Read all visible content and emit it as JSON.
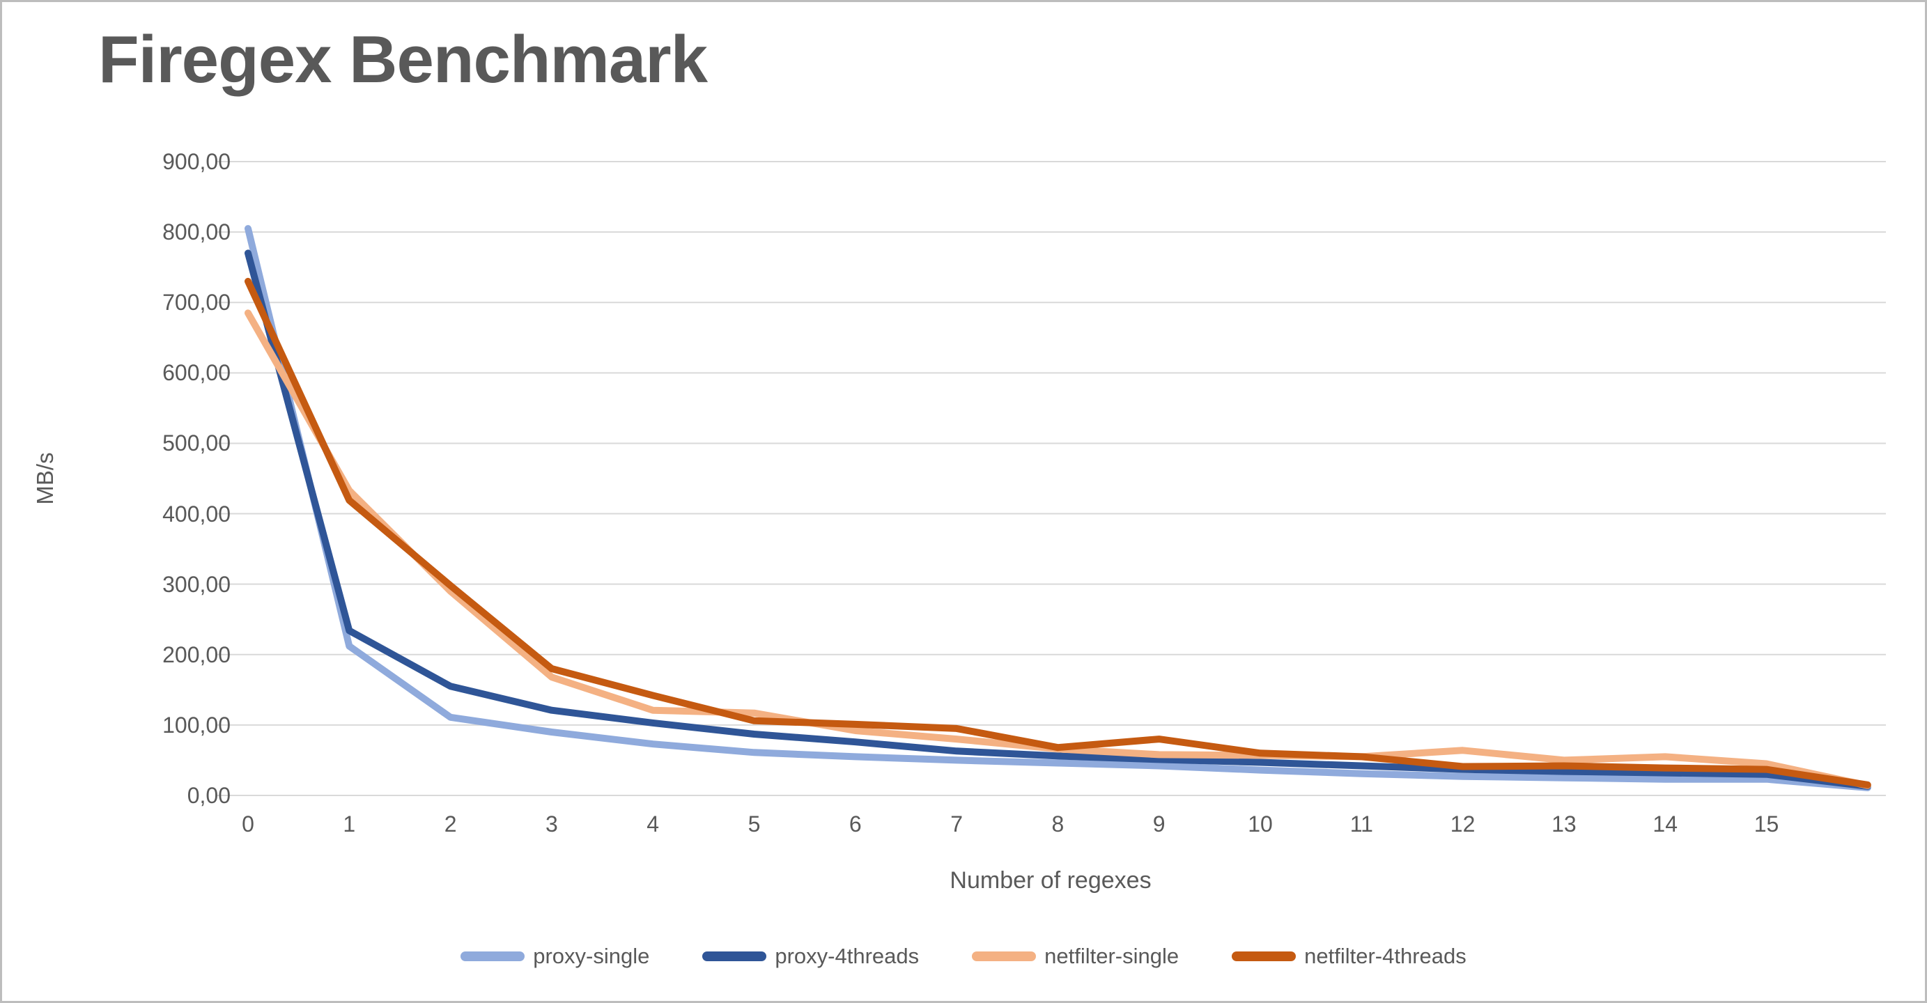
{
  "colors": {
    "text": "#595959",
    "gridline": "#D9D9D9",
    "canvas_border": "#BDBDBD",
    "background": "#FFFFFF"
  },
  "chart_data": {
    "type": "line",
    "title": "Firegex Benchmark",
    "xlabel": "Number of regexes",
    "ylabel": "MB/s",
    "ylim": [
      0,
      900
    ],
    "y_tick_step": 100,
    "y_tick_labels": [
      "900,00",
      "800,00",
      "700,00",
      "600,00",
      "500,00",
      "400,00",
      "300,00",
      "200,00",
      "100,00",
      "0,00"
    ],
    "x_tick_labels": [
      "0",
      "1",
      "2",
      "3",
      "4",
      "5",
      "6",
      "7",
      "8",
      "9",
      "10",
      "11",
      "12",
      "13",
      "14",
      "15"
    ],
    "x": [
      0,
      1,
      2,
      3,
      4,
      5,
      6,
      7,
      8,
      9,
      10,
      11,
      12,
      13,
      14,
      15,
      16
    ],
    "grid": "horizontal",
    "legend_position": "bottom",
    "series": [
      {
        "name": "proxy-single",
        "color": "#8FAADC",
        "values": [
          805,
          212,
          111,
          90,
          73,
          61,
          55,
          50,
          46,
          42,
          36,
          31,
          27,
          25,
          23,
          23,
          11
        ]
      },
      {
        "name": "proxy-4threads",
        "color": "#2F5597",
        "values": [
          770,
          234,
          155,
          121,
          103,
          87,
          76,
          63,
          56,
          51,
          47,
          42,
          37,
          34,
          32,
          30,
          13
        ]
      },
      {
        "name": "netfilter-single",
        "color": "#F4B183",
        "values": [
          685,
          433,
          290,
          168,
          121,
          117,
          92,
          80,
          66,
          58,
          57,
          55,
          64,
          50,
          55,
          45,
          14
        ]
      },
      {
        "name": "netfilter-4threads",
        "color": "#C55A11",
        "values": [
          730,
          419,
          298,
          180,
          142,
          106,
          101,
          95,
          68,
          80,
          60,
          55,
          41,
          42,
          39,
          37,
          15
        ]
      }
    ]
  }
}
